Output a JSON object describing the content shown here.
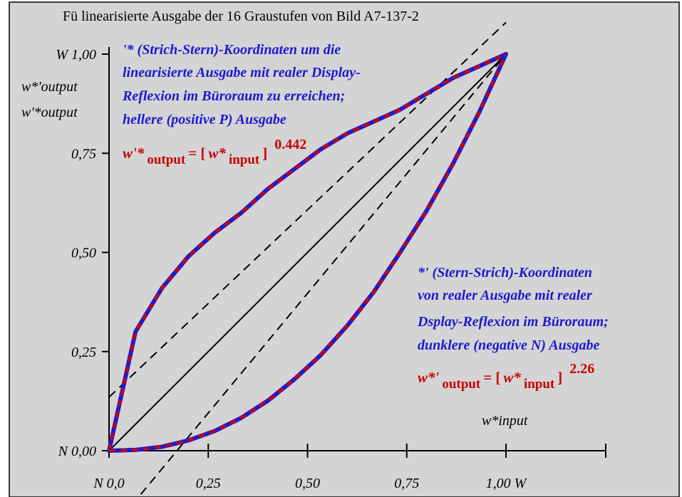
{
  "chart_data": {
    "type": "line",
    "title": "Fü linearisierte Ausgabe der 16 Graustufen von Bild A7-137-2",
    "xlim": [
      0,
      1
    ],
    "ylim": [
      0,
      1
    ],
    "x_ticks": [
      0,
      0.25,
      0.5,
      0.75,
      1.0
    ],
    "y_ticks": [
      0,
      0.25,
      0.5,
      0.75,
      1.0
    ],
    "x_tick_labels": [
      "N  0,0",
      "0,25",
      "0,50",
      "0,75",
      "1,00  W"
    ],
    "y_tick_labels": [
      "N 0,00",
      "0,25",
      "0,50",
      "0,75",
      "W 1,00"
    ],
    "ylabel_lines": [
      "w*'output",
      "w'*output"
    ],
    "xlabel": "w*input",
    "series": [
      {
        "x": [
          0,
          0.0667,
          0.1333,
          0.2,
          0.2667,
          0.3333,
          0.4,
          0.4667,
          0.5333,
          0.6,
          0.6667,
          0.7333,
          0.8,
          0.8667,
          0.9333,
          1.0
        ],
        "y": [
          0,
          0.3,
          0.41,
          0.49,
          0.55,
          0.6,
          0.66,
          0.71,
          0.76,
          0.8,
          0.83,
          0.86,
          0.9,
          0.94,
          0.97,
          1.0
        ],
        "style": "blue-red-dashed"
      },
      {
        "x": [
          0,
          0.0667,
          0.1333,
          0.2,
          0.2667,
          0.3333,
          0.4,
          0.4667,
          0.5333,
          0.6,
          0.6667,
          0.7333,
          0.8,
          0.8667,
          0.9333,
          1.0
        ],
        "y": [
          0,
          0.002,
          0.01,
          0.026,
          0.05,
          0.083,
          0.126,
          0.18,
          0.241,
          0.315,
          0.4,
          0.5,
          0.605,
          0.724,
          0.855,
          1.0
        ],
        "style": "blue-red-dashed"
      }
    ],
    "reference_lines": [
      {
        "x": [
          0,
          1
        ],
        "y": [
          0,
          1
        ],
        "style": "solid"
      },
      {
        "x": [
          0,
          1
        ],
        "y": [
          0.135,
          1.08
        ],
        "style": "dashed"
      },
      {
        "x": [
          0.08,
          1
        ],
        "y": [
          -0.11,
          1.0
        ],
        "style": "dashed"
      }
    ]
  },
  "annotations": {
    "upper_note": [
      "'* (Strich-Stern)-Koordinaten um die",
      "linearisierte Ausgabe mit realer Display-",
      "Reflexion im Büroraum zu erreichen;",
      "hellere (positive P) Ausgabe"
    ],
    "upper_formula": {
      "lhs": "w'*",
      "lhs_sub": "output",
      "eq": " = [",
      "var": "w*",
      "var_sub": "input",
      "close": "]",
      "exponent": "0.442"
    },
    "lower_note": [
      "*' (Stern-Strich)-Koordinaten",
      "von realer Ausgabe mit realer",
      "Dsplay-Reflexion im Büroraum;",
      "dunklere (negative N) Ausgabe"
    ],
    "lower_formula": {
      "lhs": "w*'",
      "lhs_sub": "output",
      "eq": " = [",
      "var": "w*",
      "var_sub": "input",
      "close": "]",
      "exponent": "2.26"
    }
  },
  "colors": {
    "background": "#d4d4d4",
    "curve_blue": "#1a1ad6",
    "curve_red": "#cc0000",
    "note_blue": "#1a1ad6",
    "formula_red": "#cc0000"
  }
}
